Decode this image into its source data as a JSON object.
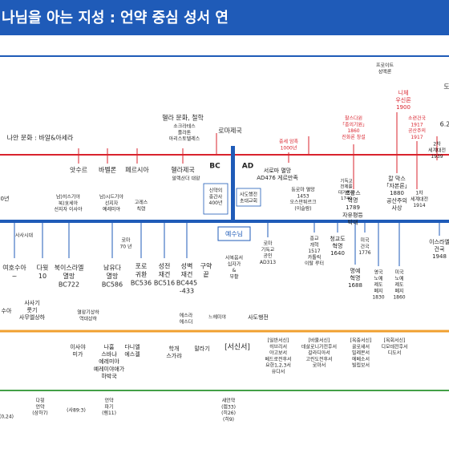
{
  "header": {
    "title": "나님을 아는 지성 : 언약 중심 성서 연"
  },
  "items": [
    {
      "lines": [
        "프로이트",
        "성액론"
      ]
    },
    {
      "lines": [
        "니체",
        "우신론",
        "1900"
      ]
    },
    {
      "lines": [
        "도"
      ]
    },
    {
      "lines": [
        "찰스다윈",
        "「종의기원」",
        "1860",
        "진화론 창설"
      ]
    },
    {
      "lines": [
        "소련건국",
        "1917",
        "공산주의",
        "1917"
      ]
    },
    {
      "lines": [
        "6.2"
      ]
    },
    {
      "lines": [
        "헬라 문화, 철학"
      ]
    },
    {
      "lines": [
        "소크라테스",
        "플라톤",
        "아리스토텔레스"
      ]
    },
    {
      "lines": [
        "로마제국"
      ]
    },
    {
      "lines": [
        "나안 문화 : 바알&아세라"
      ]
    },
    {
      "lines": [
        "중세 암흑",
        "1000년"
      ]
    },
    {
      "lines": [
        "2차",
        "세계대전",
        "1939"
      ]
    },
    {
      "lines": [
        "앗수르"
      ]
    },
    {
      "lines": [
        "바벨론"
      ]
    },
    {
      "lines": [
        "페르시아"
      ]
    },
    {
      "lines": [
        "헬라제국"
      ]
    },
    {
      "lines": [
        "알렉산더 대왕"
      ]
    },
    {
      "lines": [
        "BC"
      ]
    },
    {
      "lines": [
        "AD"
      ]
    },
    {
      "lines": [
        "서로마 멸망",
        "AD476 게르만족"
      ]
    },
    {
      "lines": [
        "칼 막스",
        "「자본론」",
        "1880",
        "공산주의",
        "사상"
      ]
    },
    {
      "lines": [
        "기독교",
        "전제를",
        "대거동장",
        "1740"
      ]
    },
    {
      "lines": [
        "0년"
      ]
    },
    {
      "lines": [
        "남)히스기야",
        "북)호세아",
        "선지자 이사야"
      ]
    },
    {
      "lines": [
        "남)시드기야",
        "선지자",
        "예레미야"
      ]
    },
    {
      "lines": [
        "고레스",
        "칙령"
      ]
    },
    {
      "lines": [
        "로마",
        "70 년"
      ]
    },
    {
      "lines": [
        "신약의",
        "중간사",
        "400년"
      ]
    },
    {
      "lines": [
        "사도행전",
        "초대교회"
      ]
    },
    {
      "lines": [
        "동로마 멸망",
        "1453",
        "오스만튀르크",
        "(이슬람)"
      ]
    },
    {
      "lines": [
        "프랑스",
        "혁명",
        "1789",
        "자유평등",
        "박애"
      ]
    },
    {
      "lines": [
        "1차",
        "세계대전",
        "1914"
      ]
    },
    {
      "lines": [
        "예수님"
      ]
    },
    {
      "lines": [
        "사사시대"
      ]
    },
    {
      "lines": [
        "여호수아",
        "~"
      ]
    },
    {
      "lines": [
        "다윗",
        "10"
      ]
    },
    {
      "lines": [
        "북이스라엘",
        "멸망",
        "BC722"
      ]
    },
    {
      "lines": [
        "남유다",
        "멸망",
        "BC586"
      ]
    },
    {
      "lines": [
        "포로",
        "귀환",
        "BC536"
      ]
    },
    {
      "lines": [
        "성전",
        "재건",
        "BC516"
      ]
    },
    {
      "lines": [
        "성벽",
        "재건",
        "BC445",
        "-433"
      ]
    },
    {
      "lines": [
        "구약",
        "끝"
      ]
    },
    {
      "lines": [
        "사복음서",
        "십자가",
        "&",
        "부활"
      ]
    },
    {
      "lines": [
        "로마",
        "기독교",
        "공인",
        "AD313"
      ]
    },
    {
      "lines": [
        "종교",
        "개혁",
        "1517",
        "카톨릭",
        "이탈 루터"
      ]
    },
    {
      "lines": [
        "청교도",
        "혁명",
        "1640"
      ]
    },
    {
      "lines": [
        "미국",
        "건국",
        "1776"
      ]
    },
    {
      "lines": [
        "명예",
        "혁명",
        "1688"
      ]
    },
    {
      "lines": [
        "영국",
        "노예",
        "제도",
        "폐지",
        "1830"
      ]
    },
    {
      "lines": [
        "미국",
        "노예",
        "제도",
        "폐지",
        "1860"
      ]
    },
    {
      "lines": [
        "이스라엘",
        "건국",
        "1948"
      ]
    },
    {
      "lines": [
        "수아"
      ]
    },
    {
      "lines": [
        "사사기",
        "룻기",
        "사무엘상하"
      ]
    },
    {
      "lines": [
        "열왕기상하",
        "역대상하"
      ]
    },
    {
      "lines": [
        "에스라",
        "에스더"
      ]
    },
    {
      "lines": [
        "느헤미야"
      ]
    },
    {
      "lines": [
        "사도행전"
      ]
    },
    {
      "lines": [
        "이사야",
        "미가"
      ]
    },
    {
      "lines": [
        "나훔",
        "스바냐",
        "예레미야",
        "예레미야애가",
        "하박국"
      ]
    },
    {
      "lines": [
        "다니엘",
        "에스겔"
      ]
    },
    {
      "lines": [
        "학개",
        "스가랴"
      ]
    },
    {
      "lines": [
        "말라기"
      ]
    },
    {
      "lines": [
        "[서신서]"
      ]
    },
    {
      "lines": [
        "[일반서신]",
        "히브리서",
        "야고보서",
        "베드로전후서",
        "요한1,2,3서",
        "유다서"
      ]
    },
    {
      "lines": [
        "[바울서신]",
        "데살로니가전후서",
        "갈라디아서",
        "고린도전후서",
        "로마서"
      ]
    },
    {
      "lines": [
        "[옥중서신]",
        "골로새서",
        "빌레몬서",
        "에베소서",
        "빌립보서"
      ]
    },
    {
      "lines": [
        "[목회서신]",
        "디모데전후서",
        "디도서"
      ]
    },
    {
      "lines": [
        "(0,24)"
      ]
    },
    {
      "lines": [
        "다윗",
        "언약",
        "(삼하7)"
      ]
    },
    {
      "lines": [
        "(사89:3)"
      ]
    },
    {
      "lines": [
        "언약",
        "파기",
        "(렘11)"
      ]
    },
    {
      "lines": [
        "새언약",
        "(렘33)",
        "(히26)",
        "(히9)"
      ]
    }
  ]
}
